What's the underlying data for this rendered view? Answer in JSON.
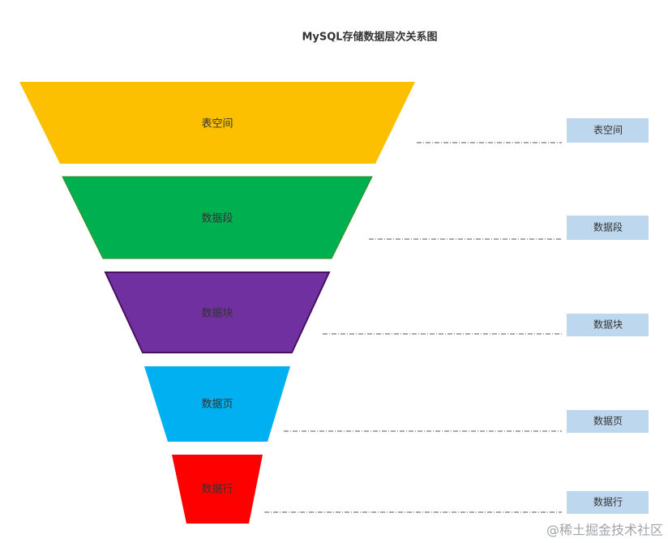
{
  "title": "MySQL存储数据层次关系图",
  "levels": [
    {
      "label": "表空间",
      "tag": "表空间"
    },
    {
      "label": "数据段",
      "tag": "数据段"
    },
    {
      "label": "数据块",
      "tag": "数据块"
    },
    {
      "label": "数据页",
      "tag": "数据页"
    },
    {
      "label": "数据行",
      "tag": "数据行"
    }
  ],
  "watermark": "@稀土掘金技术社区"
}
